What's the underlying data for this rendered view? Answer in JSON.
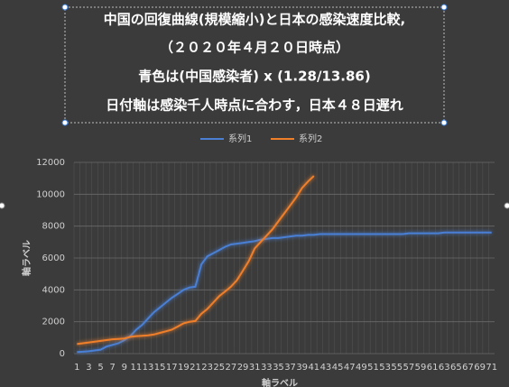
{
  "chart_data": {
    "type": "line",
    "title": [
      "中国の回復曲線(規模縮小)と日本の感染速度比較,",
      "（２０２０年４月２０日時点）",
      "青色は(中国感染者) x (1.28/13.86)",
      "日付軸は感染千人時点に合わす，日本４８日遅れ"
    ],
    "y_label": "軸ラベル",
    "x_label": "軸ラベル",
    "categories": [
      1,
      null,
      3,
      null,
      5,
      null,
      7,
      null,
      9,
      null,
      11,
      null,
      13,
      null,
      15,
      null,
      17,
      null,
      19,
      null,
      21,
      null,
      23,
      null,
      25,
      null,
      27,
      null,
      29,
      null,
      31,
      null,
      33,
      null,
      35,
      null,
      37,
      null,
      39,
      null,
      41,
      null,
      43,
      null,
      45,
      null,
      47,
      null,
      49,
      null,
      51,
      null,
      53,
      null,
      55,
      null,
      57,
      null,
      59,
      null,
      61,
      null,
      63,
      null,
      65,
      null,
      67,
      null,
      69,
      null,
      71
    ],
    "series": [
      {
        "name": "系列1",
        "color": "#4a7fd4",
        "values": [
          100,
          120,
          150,
          200,
          250,
          450,
          550,
          650,
          850,
          1100,
          1500,
          1800,
          2200,
          2600,
          2900,
          3200,
          3500,
          3750,
          4000,
          4150,
          4200,
          5600,
          6100,
          6300,
          6500,
          6700,
          6850,
          6900,
          6950,
          7000,
          7050,
          7150,
          7200,
          7250,
          7250,
          7300,
          7350,
          7400,
          7400,
          7450,
          7450,
          7500,
          7500,
          7500,
          7500,
          7500,
          7500,
          7500,
          7500,
          7500,
          7500,
          7500,
          7500,
          7500,
          7500,
          7500,
          7550,
          7550,
          7550,
          7550,
          7550,
          7550,
          7600,
          7600,
          7600,
          7600,
          7600,
          7600,
          7600,
          7600,
          7600
        ]
      },
      {
        "name": "系列2",
        "color": "#f07f2a",
        "values": [
          600,
          650,
          700,
          750,
          800,
          850,
          900,
          920,
          950,
          1050,
          1100,
          1120,
          1150,
          1200,
          1300,
          1400,
          1500,
          1700,
          1900,
          2000,
          2050,
          2500,
          2800,
          3200,
          3600,
          3900,
          4200,
          4600,
          5200,
          5800,
          6600,
          7000,
          7400,
          7800,
          8300,
          8800,
          9300,
          9800,
          10400,
          10800,
          11150,
          null,
          null,
          null,
          null,
          null,
          null,
          null,
          null,
          null,
          null,
          null,
          null,
          null,
          null,
          null,
          null,
          null,
          null,
          null,
          null,
          null,
          null,
          null,
          null,
          null,
          null,
          null,
          null,
          null,
          null
        ]
      }
    ],
    "ylim": [
      0,
      12000
    ],
    "yticks": [
      0,
      2000,
      4000,
      6000,
      8000,
      10000,
      12000
    ],
    "grid": true,
    "legend": "top"
  }
}
